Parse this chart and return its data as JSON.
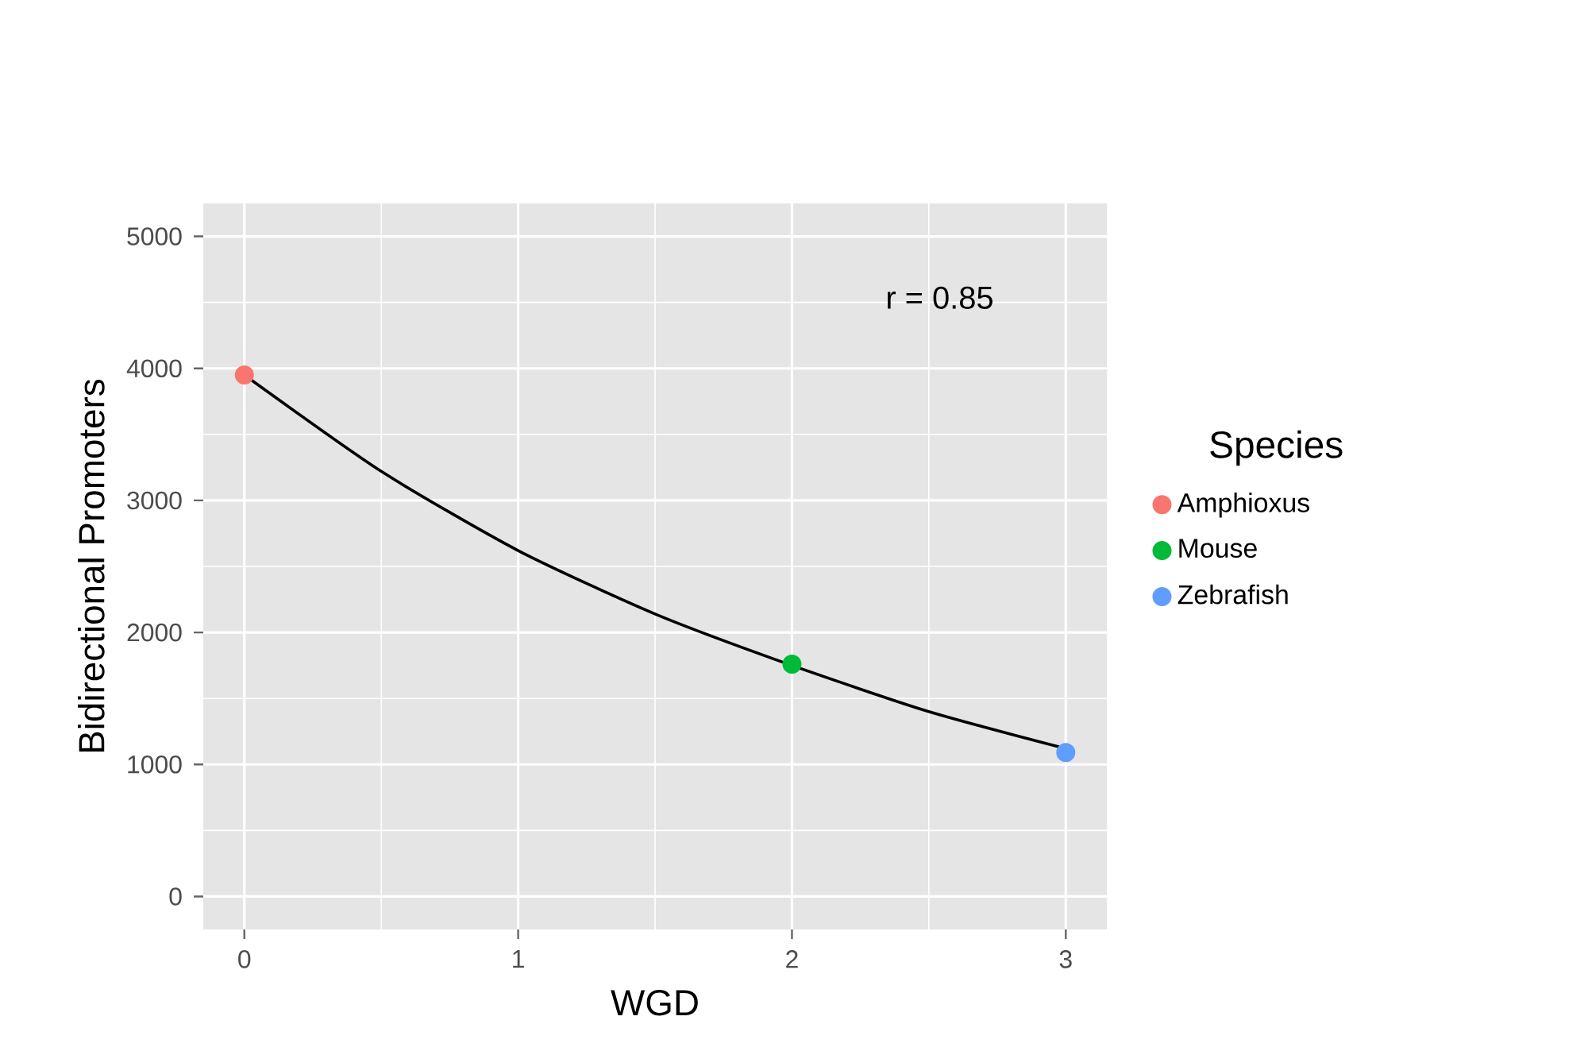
{
  "chart_data": {
    "type": "scatter",
    "xlabel": "WGD",
    "ylabel": "Bidirectional Promoters",
    "legend_title": "Species",
    "xlim": [
      -0.15,
      3.15
    ],
    "ylim": [
      -250,
      5250
    ],
    "xticks": [
      0,
      1,
      2,
      3
    ],
    "yticks": [
      0,
      1000,
      2000,
      3000,
      4000,
      5000
    ],
    "grid": true,
    "legend": "right",
    "marker": "circle",
    "annotations": [
      "r = 0.85"
    ],
    "series": [
      {
        "name": "Amphioxus",
        "color": "#f8766d",
        "x": [
          0
        ],
        "values": [
          3950
        ]
      },
      {
        "name": "Mouse",
        "color": "#00ba38",
        "x": [
          2
        ],
        "values": [
          1760
        ]
      },
      {
        "name": "Zebrafish",
        "color": "#619cff",
        "x": [
          3
        ],
        "values": [
          1090
        ]
      },
      {
        "type": "line",
        "marker": "none",
        "color": "#000000",
        "x": [
          0,
          0.5,
          1,
          1.5,
          2,
          2.5,
          3
        ],
        "values": [
          3950,
          3220,
          2620,
          2140,
          1750,
          1400,
          1120
        ]
      }
    ]
  }
}
